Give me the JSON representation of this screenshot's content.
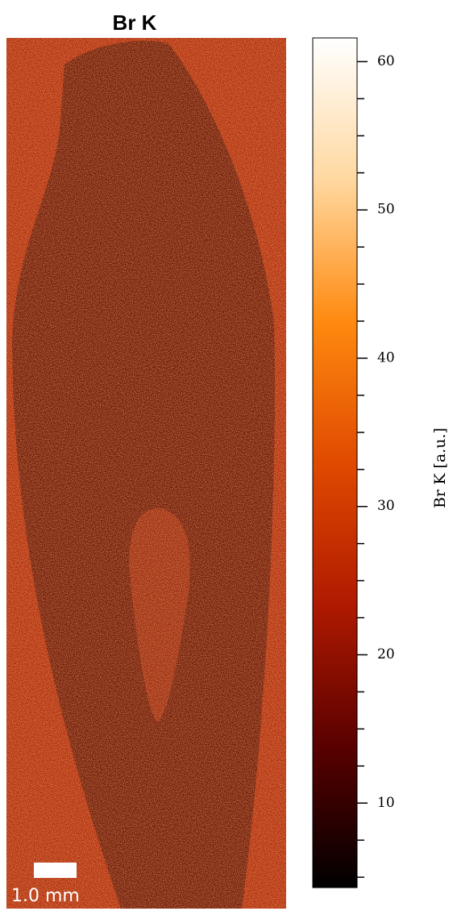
{
  "chart_data": {
    "type": "image",
    "title": "Br K",
    "colorbar_label": "Br K  [a.u.]",
    "clim": [
      4.3,
      61.6
    ],
    "cticks": [
      10,
      20,
      30,
      40,
      50,
      60
    ],
    "cminor_ticks": [
      5,
      7.5,
      12.5,
      15,
      17.5,
      22.5,
      25,
      27.5,
      32.5,
      35,
      37.5,
      42.5,
      45,
      47.5,
      52.5,
      55,
      57.5
    ],
    "colormap": [
      "#000000",
      "#5a0000",
      "#b01a00",
      "#e04a00",
      "#ff8a10",
      "#ffd8a0",
      "#ffffff"
    ],
    "scale_bar": "1.0 mm"
  }
}
